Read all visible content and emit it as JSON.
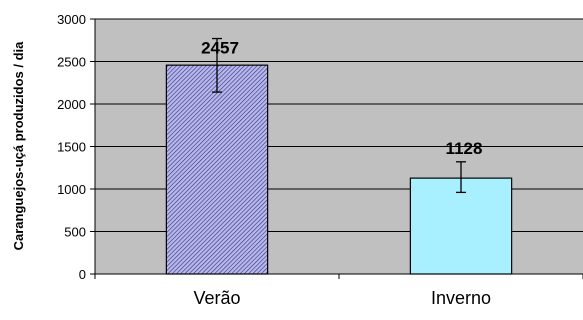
{
  "chart_data": {
    "type": "bar",
    "categories": [
      "Verão",
      "Inverno"
    ],
    "values": [
      2457,
      1128
    ],
    "data_labels": [
      "2457",
      "1128"
    ],
    "error_bars": [
      {
        "low": 2140,
        "high": 2770
      },
      {
        "low": 960,
        "high": 1320
      }
    ],
    "bar_colors": [
      "#8f8fd0",
      "#a8f0ff"
    ],
    "bar_patterns": [
      "hatched",
      "solid"
    ],
    "title": "",
    "xlabel": "",
    "ylabel": "Caranguejos-uçá produzidos / dia",
    "ylim": [
      0,
      3000
    ],
    "yticks": [
      0,
      500,
      1000,
      1500,
      2000,
      2500,
      3000
    ],
    "grid": true,
    "plot_background": "#c0c0c0",
    "legend": "none"
  }
}
